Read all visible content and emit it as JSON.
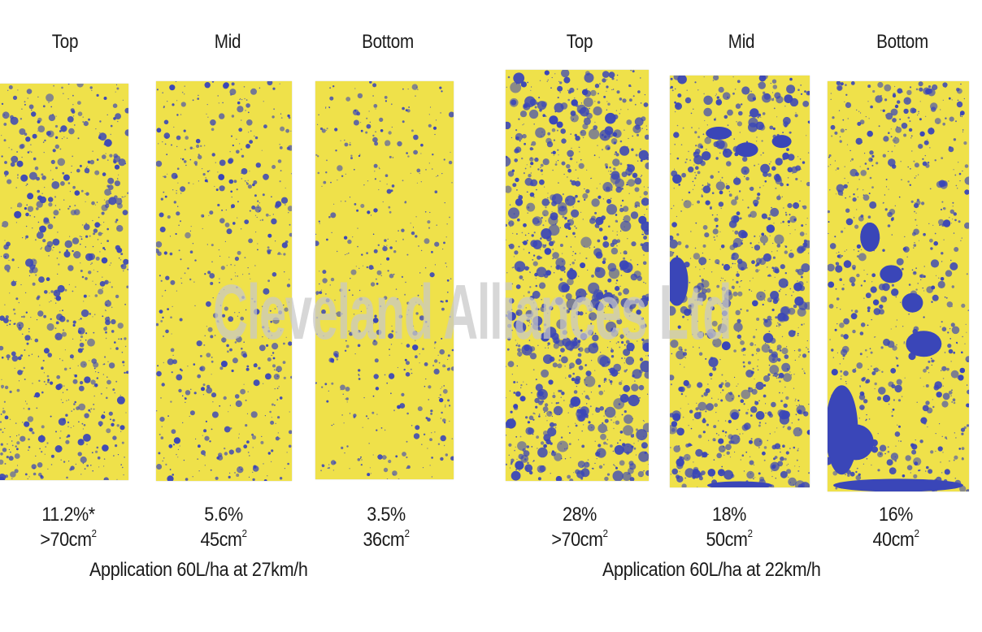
{
  "colors": {
    "card": "#efe14a",
    "dye": "#3a46b8",
    "text": "#1a1a1a"
  },
  "watermark": "Cleveland Alliances Ltd",
  "groups": [
    {
      "caption": "Application 60L/ha at 27km/h",
      "cards": [
        {
          "position": "Top",
          "coverage": "11.2%*",
          "area": ">70cm",
          "area_sup": "2",
          "density": 0.55,
          "blobs": 0
        },
        {
          "position": "Mid",
          "coverage": "5.6%",
          "area": "45cm",
          "area_sup": "2",
          "density": 0.35,
          "blobs": 0
        },
        {
          "position": "Bottom",
          "coverage": "3.5%",
          "area": "36cm",
          "area_sup": "2",
          "density": 0.25,
          "blobs": 0
        }
      ]
    },
    {
      "caption": "Application 60L/ha at 22km/h",
      "cards": [
        {
          "position": "Top",
          "coverage": "28%",
          "area": ">70cm",
          "area_sup": "2",
          "density": 1.0,
          "blobs": 0
        },
        {
          "position": "Mid",
          "coverage": "18%",
          "area": "50cm",
          "area_sup": "2",
          "density": 0.8,
          "blobs": 1
        },
        {
          "position": "Bottom",
          "coverage": "16%",
          "area": "40cm",
          "area_sup": "2",
          "density": 0.55,
          "blobs": 2
        }
      ]
    }
  ]
}
